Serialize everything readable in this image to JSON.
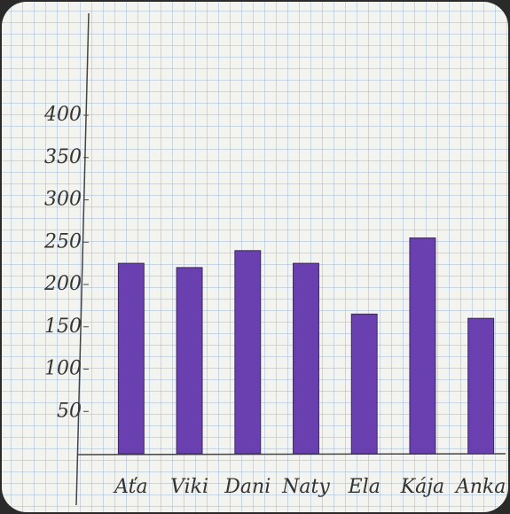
{
  "chart_data": {
    "type": "bar",
    "categories": [
      "Aťa",
      "Viki",
      "Dani",
      "Naty",
      "Ela",
      "Kája",
      "Anka"
    ],
    "values": [
      225,
      220,
      240,
      225,
      165,
      255,
      160
    ],
    "color": "#6a3fb0",
    "ylim": [
      0,
      400
    ],
    "yticks": [
      50,
      100,
      150,
      200,
      250,
      300,
      350,
      400
    ],
    "grid": false
  }
}
